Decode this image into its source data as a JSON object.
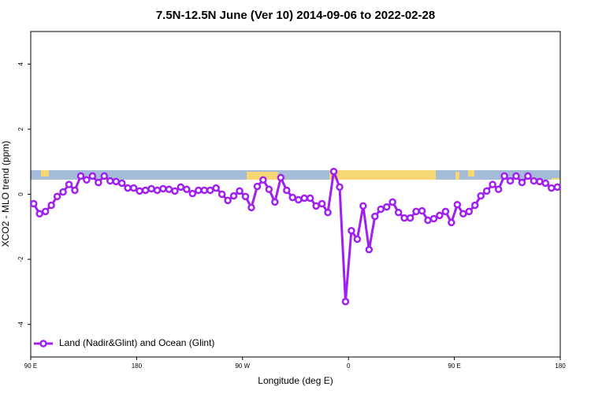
{
  "chart_data": {
    "type": "line",
    "title": "7.5N-12.5N June (Ver 10)   2014-09-06 to 2022-02-28",
    "x_label": "Longitude (deg E)",
    "y_label": "XCO2 - MLO trend (ppm)",
    "xlim": [
      90,
      540
    ],
    "ylim": [
      -5,
      5
    ],
    "xticks": [
      {
        "value": 90,
        "label": "90 E"
      },
      {
        "value": 180,
        "label": "180"
      },
      {
        "value": 270,
        "label": "90 W"
      },
      {
        "value": 360,
        "label": "0"
      },
      {
        "value": 450,
        "label": "90 E"
      },
      {
        "value": 540,
        "label": "180"
      }
    ],
    "yticks": [
      -4,
      -2,
      0,
      2,
      4
    ],
    "legend": "bottom-left",
    "x": [
      92.5,
      97.5,
      102.5,
      107.5,
      112.5,
      117.5,
      122.5,
      127.5,
      132.5,
      137.5,
      142.5,
      147.5,
      152.5,
      157.5,
      162.5,
      167.5,
      172.5,
      177.5,
      182.5,
      187.5,
      192.5,
      197.5,
      202.5,
      207.5,
      212.5,
      217.5,
      222.5,
      227.5,
      232.5,
      237.5,
      242.5,
      247.5,
      252.5,
      257.5,
      262.5,
      267.5,
      272.5,
      277.5,
      282.5,
      287.5,
      292.5,
      297.5,
      302.5,
      307.5,
      312.5,
      317.5,
      322.5,
      327.5,
      332.5,
      337.5,
      342.5,
      347.5,
      352.5,
      357.5,
      362.5,
      367.5,
      372.5,
      377.5,
      382.5,
      387.5,
      392.5,
      397.5,
      402.5,
      407.5,
      412.5,
      417.5,
      422.5,
      427.5,
      432.5,
      437.5,
      442.5,
      447.5,
      452.5,
      457.5,
      462.5,
      467.5,
      472.5,
      477.5,
      482.5,
      487.5,
      492.5,
      497.5,
      502.5,
      507.5,
      512.5,
      517.5,
      522.5,
      527.5,
      532.5,
      537.5
    ],
    "series": [
      {
        "name": "Land (Nadir&Glint) and Ocean (Glint)",
        "color": "#a020f0",
        "values": [
          -0.29,
          -0.6,
          -0.53,
          -0.34,
          -0.07,
          0.07,
          0.3,
          0.12,
          0.56,
          0.44,
          0.56,
          0.36,
          0.56,
          0.41,
          0.39,
          0.34,
          0.19,
          0.19,
          0.1,
          0.12,
          0.17,
          0.12,
          0.17,
          0.15,
          0.1,
          0.22,
          0.15,
          0.02,
          0.12,
          0.12,
          0.12,
          0.19,
          0,
          -0.19,
          -0.05,
          0.1,
          -0.07,
          -0.41,
          0.24,
          0.44,
          0.15,
          -0.24,
          0.51,
          0.12,
          -0.1,
          -0.17,
          -0.12,
          -0.12,
          -0.36,
          -0.29,
          -0.56,
          0.7,
          0.22,
          -3.3,
          -1.12,
          -1.38,
          -0.36,
          -1.7,
          -0.68,
          -0.46,
          -0.39,
          -0.24,
          -0.56,
          -0.73,
          -0.73,
          -0.53,
          -0.51,
          -0.8,
          -0.75,
          -0.65,
          -0.53,
          -0.87,
          -0.32,
          -0.6,
          -0.53,
          -0.34,
          -0.05,
          0.1,
          0.3,
          0.15,
          0.56,
          0.41,
          0.56,
          0.36,
          0.56,
          0.41,
          0.39,
          0.34,
          0.19,
          0.22
        ]
      }
    ]
  }
}
